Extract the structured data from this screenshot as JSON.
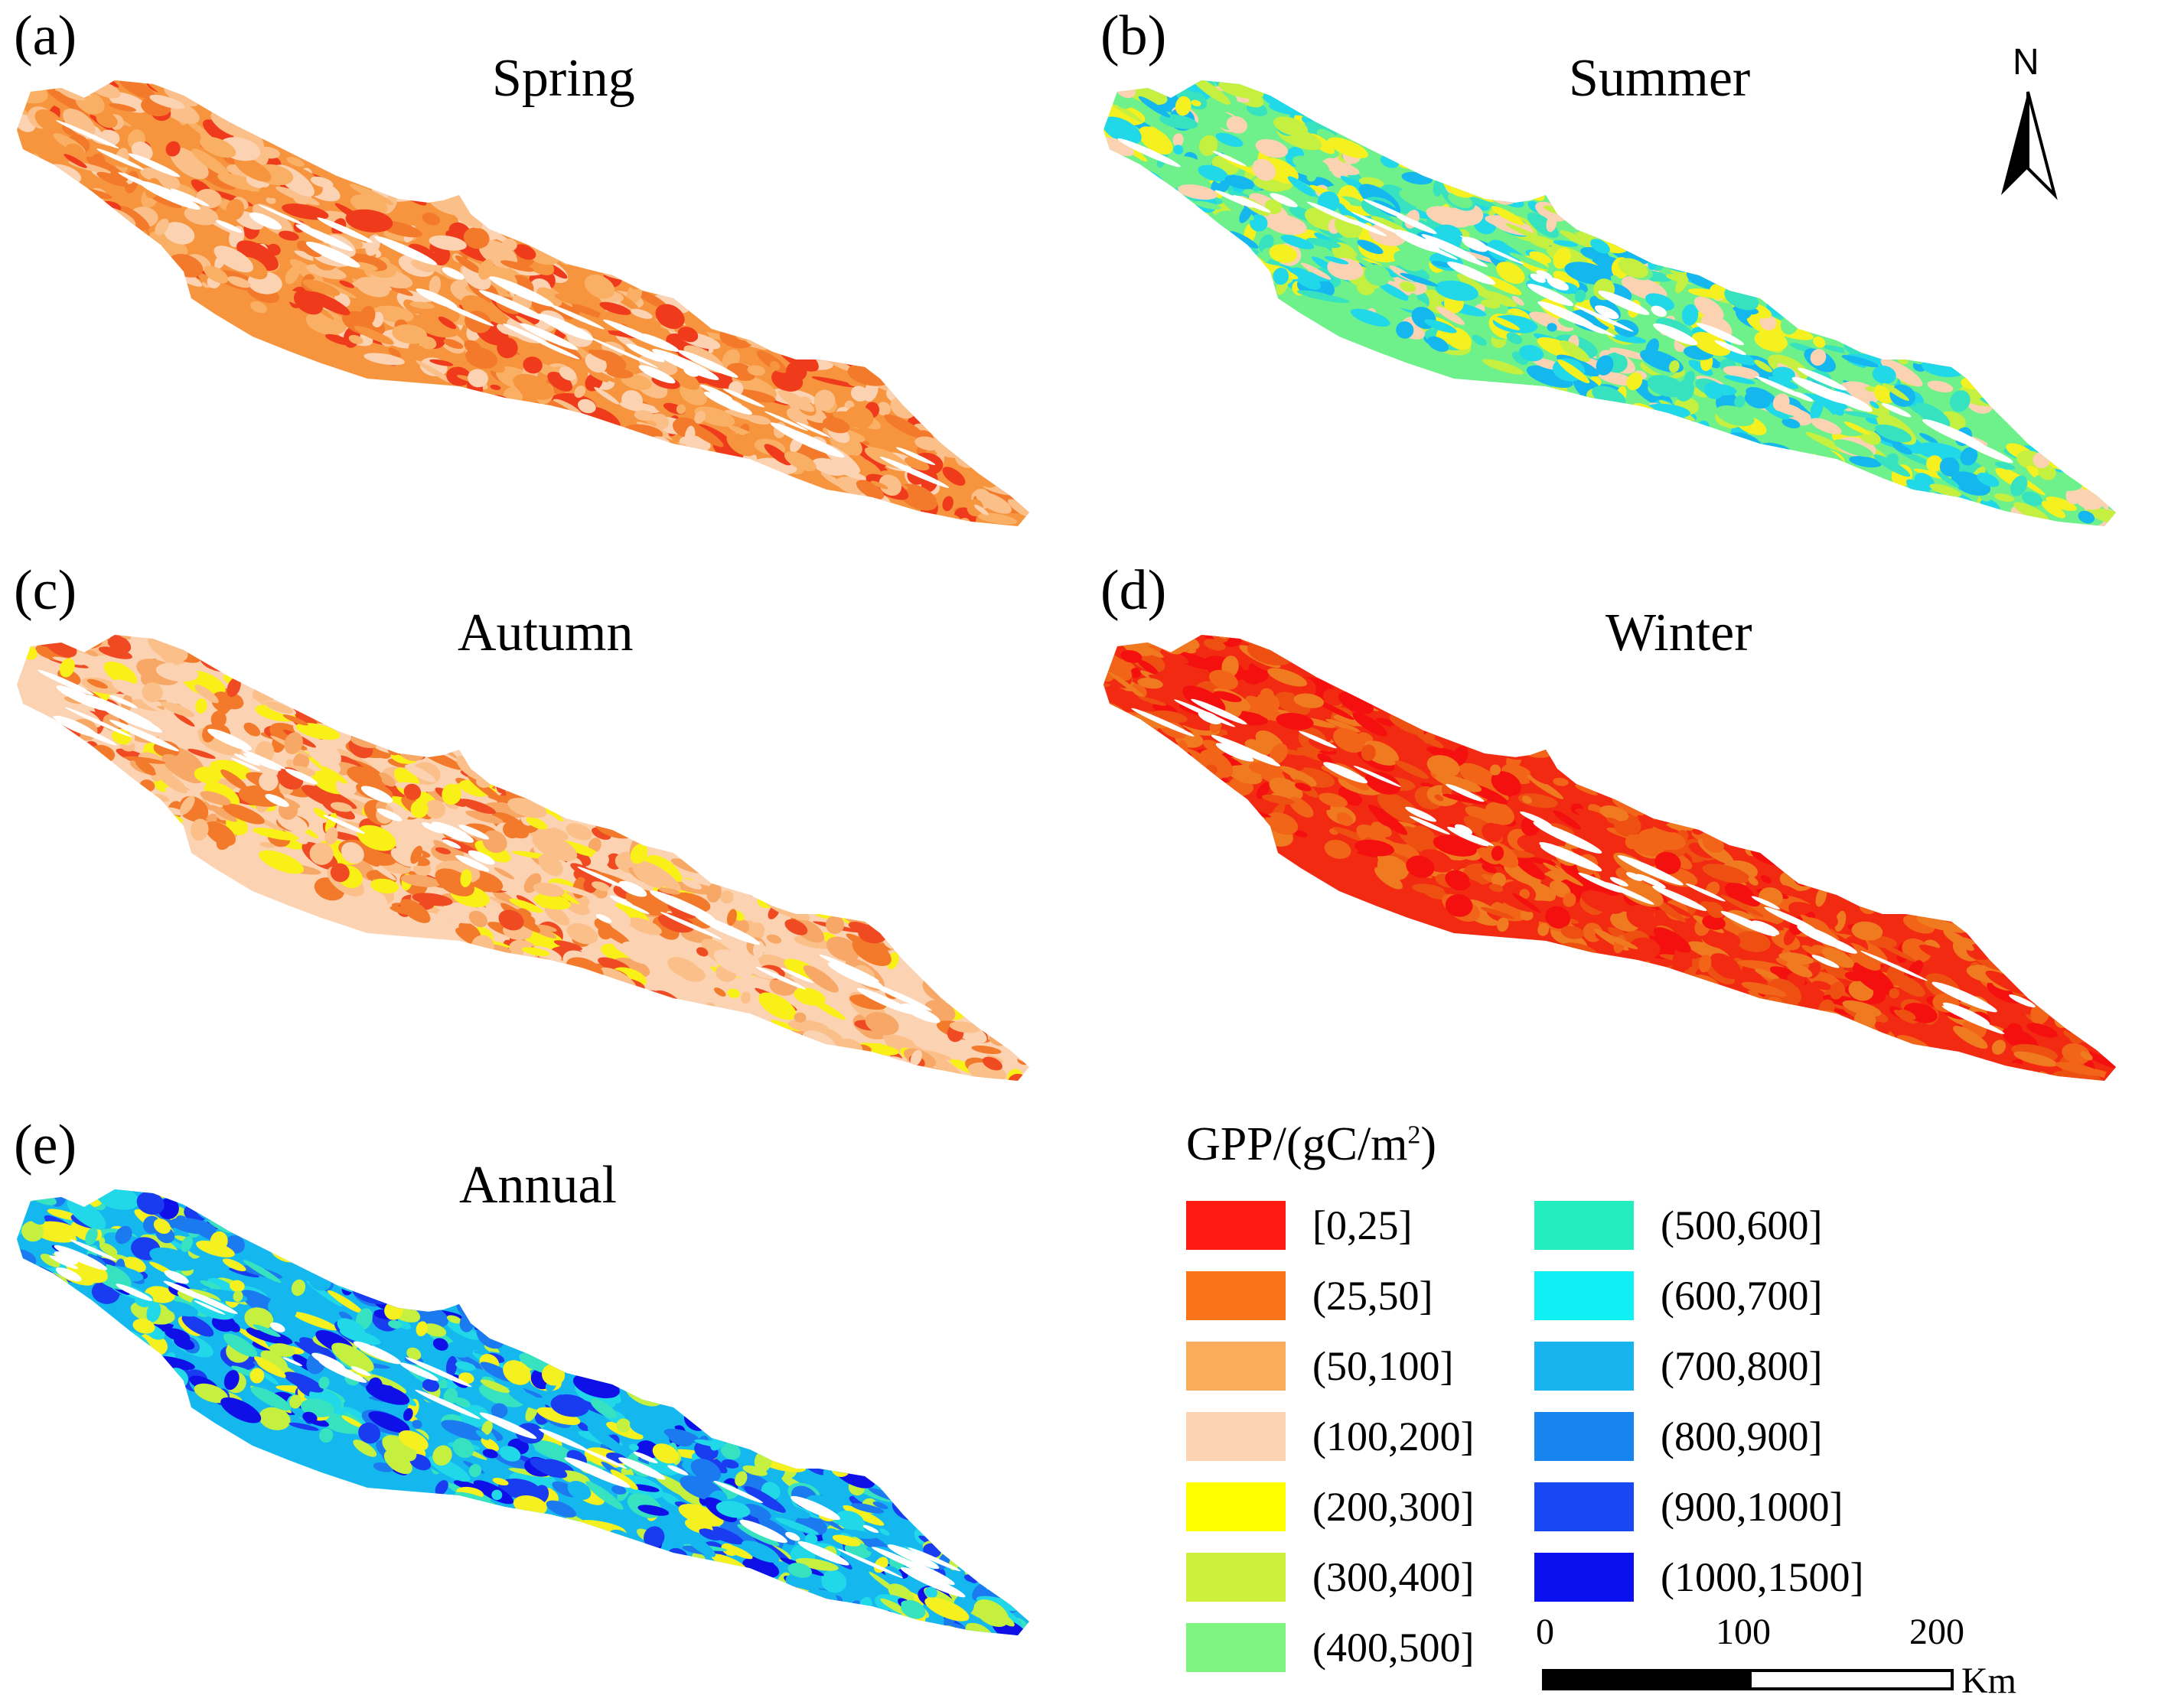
{
  "panels": [
    {
      "label": "(a)",
      "title": "Spring",
      "palette": [
        "#f7953f",
        "#fab064",
        "#fbc08a",
        "#f27a2a",
        "#fbd2b2",
        "#ef3a1c"
      ]
    },
    {
      "label": "(b)",
      "title": "Summer",
      "palette": [
        "#6ef08a",
        "#36e2c0",
        "#20d8e8",
        "#c5f040",
        "#14b8ee",
        "#f5f020",
        "#fbd2b2"
      ]
    },
    {
      "label": "(c)",
      "title": "Autumn",
      "palette": [
        "#fbd2b2",
        "#fbc08a",
        "#f7a866",
        "#f27a2a",
        "#f8f016",
        "#ef4a22"
      ]
    },
    {
      "label": "(d)",
      "title": "Winter",
      "palette": [
        "#f22a12",
        "#f26418",
        "#f07a20",
        "#f51010",
        "#ee5012"
      ]
    },
    {
      "label": "(e)",
      "title": "Annual",
      "palette": [
        "#14b8ee",
        "#20d8e8",
        "#1c7af0",
        "#36e2c0",
        "#1a3cf0",
        "#0f10e8",
        "#c5f040",
        "#f5f020"
      ]
    }
  ],
  "north_arrow": {
    "label": "N"
  },
  "legend": {
    "title_main": "GPP/(gC/m",
    "title_sup": "2",
    "title_end": ")",
    "items": [
      {
        "label": "[0,25]",
        "color": "#ff1a12"
      },
      {
        "label": "(25,50]",
        "color": "#f97418"
      },
      {
        "label": "(50,100]",
        "color": "#f9ad5c"
      },
      {
        "label": "(100,200]",
        "color": "#fcd4b4"
      },
      {
        "label": "(200,300]",
        "color": "#ffff00"
      },
      {
        "label": "(300,400]",
        "color": "#ccf03c"
      },
      {
        "label": "(400,500]",
        "color": "#7ff37f"
      },
      {
        "label": "(500,600]",
        "color": "#22eec0"
      },
      {
        "label": "(600,700]",
        "color": "#10f0f4"
      },
      {
        "label": "(700,800]",
        "color": "#18b4f0"
      },
      {
        "label": "(800,900]",
        "color": "#1884f0"
      },
      {
        "label": "(900,1000]",
        "color": "#1848f4"
      },
      {
        "label": "(1000,1500]",
        "color": "#0a10ee"
      }
    ]
  },
  "scale_bar": {
    "ticks": [
      "0",
      "100",
      "200"
    ],
    "unit": "Km"
  }
}
